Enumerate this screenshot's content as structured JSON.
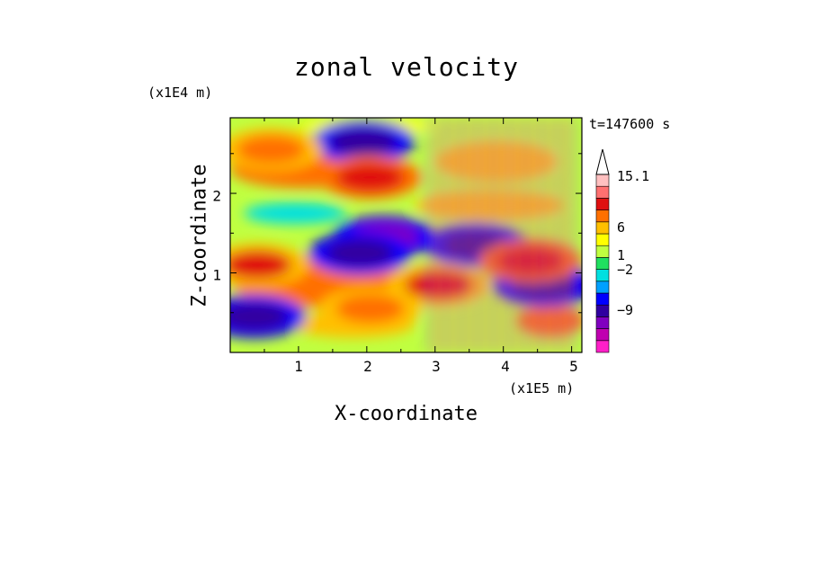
{
  "chart_data": {
    "type": "heatmap",
    "title": "zonal velocity",
    "xlabel": "X-coordinate",
    "ylabel": "Z-coordinate",
    "x_unit": "(x1E5 m)",
    "y_unit": "(x1E4 m)",
    "time_label": "t=147600 s",
    "xlim": [
      0,
      5.15
    ],
    "ylim": [
      0,
      2.95
    ],
    "x_ticks": [
      "1",
      "2",
      "3",
      "4",
      "5"
    ],
    "y_ticks": [
      "1",
      "2"
    ],
    "colorbar": {
      "levels": [
        -15,
        -12,
        -9,
        -6,
        -3,
        -2,
        -1,
        0,
        1,
        2,
        3,
        6,
        9,
        12,
        15.1
      ],
      "labels": [
        "15.1",
        "6",
        "1",
        "-2",
        "-9"
      ],
      "extend": "max",
      "colors": [
        "#ff20c8",
        "#c000b0",
        "#8000c0",
        "#3000a0",
        "#0000ff",
        "#00a0ff",
        "#00e0e0",
        "#20e060",
        "#c0ff40",
        "#ffff00",
        "#ffc000",
        "#ff7000",
        "#e01010",
        "#ff7070",
        "#ffc0c0",
        "#ffffff"
      ]
    },
    "grid": false,
    "features": [
      {
        "x": 2.25,
        "z": 1.45,
        "u": -10
      },
      {
        "x": 1.9,
        "z": 1.25,
        "u": -9
      },
      {
        "x": 3.6,
        "z": 1.35,
        "u": -8
      },
      {
        "x": 4.6,
        "z": 0.85,
        "u": -8
      },
      {
        "x": 1.95,
        "z": 2.65,
        "u": -9
      },
      {
        "x": 0.35,
        "z": 0.45,
        "u": -8
      },
      {
        "x": 2.05,
        "z": 2.2,
        "u": 7
      },
      {
        "x": 0.4,
        "z": 1.1,
        "u": 6
      },
      {
        "x": 4.4,
        "z": 1.15,
        "u": 8
      },
      {
        "x": 3.05,
        "z": 0.85,
        "u": 6
      },
      {
        "x": 0.6,
        "z": 2.55,
        "u": 5
      },
      {
        "x": 2.05,
        "z": 0.55,
        "u": 5
      }
    ]
  }
}
